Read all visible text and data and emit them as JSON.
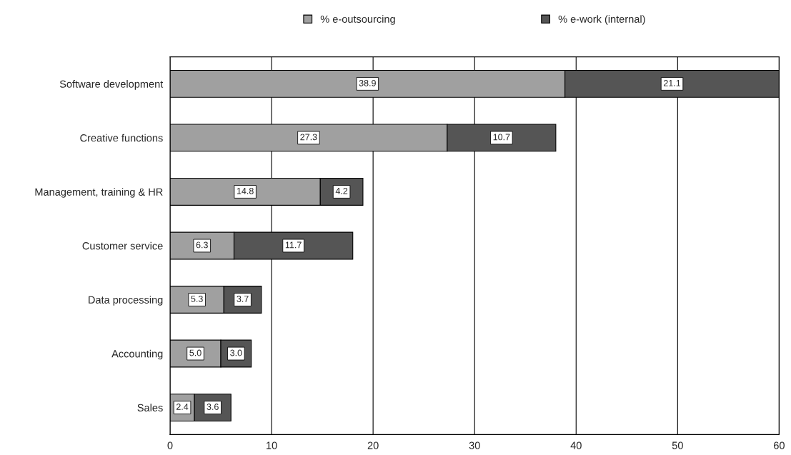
{
  "chart_data": {
    "type": "bar",
    "orientation": "horizontal",
    "stacked": true,
    "categories": [
      "Software development",
      "Creative functions",
      "Management, training & HR",
      "Customer service",
      "Data processing",
      "Accounting",
      "Sales"
    ],
    "series": [
      {
        "name": "% e-outsourcing",
        "color": "#a0a0a0",
        "values": [
          38.9,
          27.3,
          14.8,
          6.3,
          5.3,
          5.0,
          2.4
        ],
        "value_labels": [
          "38.9",
          "27.3",
          "14.8",
          "6.3",
          "5.3",
          "5.0",
          "2.4"
        ]
      },
      {
        "name": "% e-work (internal)",
        "color": "#555555",
        "values": [
          21.1,
          10.7,
          4.2,
          11.7,
          3.7,
          3.0,
          3.6
        ],
        "value_labels": [
          "21.1",
          "10.7",
          "4.2",
          "11.7",
          "3.7",
          "3.0",
          "3.6"
        ]
      }
    ],
    "xlim": [
      0,
      60
    ],
    "xticks": [
      0,
      10,
      20,
      30,
      40,
      50,
      60
    ],
    "grid": "x",
    "legend": "top"
  }
}
